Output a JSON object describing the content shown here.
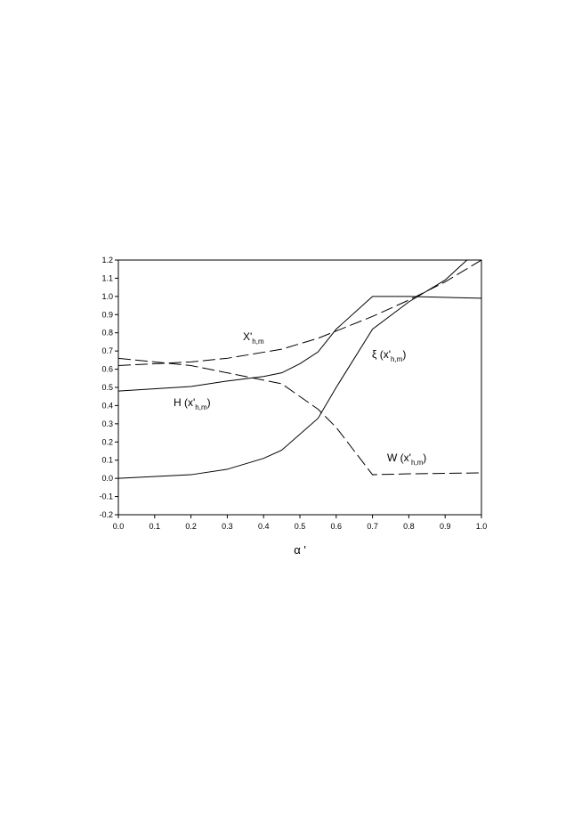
{
  "chart_data": {
    "type": "line",
    "x_label": "α '",
    "xlim": [
      0,
      1
    ],
    "ylim": [
      -0.2,
      1.2
    ],
    "xticks": [
      {
        "value": 0,
        "label": "0.0"
      },
      0.1,
      0.2,
      0.3,
      0.4,
      0.5,
      0.6,
      0.7,
      0.8,
      0.9,
      {
        "value": 1,
        "label": "1.0"
      }
    ],
    "yticks": [
      -0.2,
      -0.1,
      {
        "value": 0,
        "label": "0.0"
      },
      0.1,
      0.2,
      0.3,
      0.4,
      0.5,
      0.6,
      0.7,
      0.8,
      0.9,
      {
        "value": 1,
        "label": "1.0"
      },
      1.1,
      1.2
    ],
    "series": [
      {
        "color": "#000000",
        "style": "solid",
        "x": [
          0,
          0.2,
          0.3,
          0.4,
          0.45,
          0.5,
          0.55,
          0.6,
          0.7,
          0.8,
          1.0
        ],
        "values": [
          0.48,
          0.505,
          0.535,
          0.56,
          0.58,
          0.63,
          0.695,
          0.82,
          1.0,
          1.0,
          0.99
        ]
      },
      {
        "color": "#000000",
        "style": "solid",
        "x": [
          0,
          0.2,
          0.3,
          0.4,
          0.45,
          0.55,
          0.6,
          0.7,
          0.8,
          0.9,
          0.96
        ],
        "values": [
          0,
          0.02,
          0.05,
          0.11,
          0.155,
          0.33,
          0.5,
          0.82,
          0.97,
          1.09,
          1.2
        ]
      },
      {
        "color": "#000000",
        "style": "dashed",
        "x": [
          0,
          0.2,
          0.3,
          0.45,
          0.55,
          0.6,
          0.7,
          0.8,
          0.9,
          1.0
        ],
        "values": [
          0.62,
          0.64,
          0.66,
          0.71,
          0.77,
          0.81,
          0.89,
          0.98,
          1.08,
          1.2
        ]
      },
      {
        "color": "#000000",
        "style": "dashed",
        "x": [
          0,
          0.2,
          0.3,
          0.45,
          0.55,
          0.6,
          0.7,
          0.8,
          1.0
        ],
        "values": [
          0.66,
          0.62,
          0.58,
          0.52,
          0.38,
          0.28,
          0.02,
          0.025,
          0.03
        ]
      }
    ],
    "annotations": [
      {
        "prefix": "H (x'",
        "subscript": "h,m",
        "suffix": ")"
      },
      {
        "prefix": "ξ (x'",
        "subscript": "h,m",
        "suffix": ")"
      },
      {
        "prefix": "X'",
        "subscript": "h,m",
        "suffix": ""
      },
      {
        "prefix": "W (x'",
        "subscript": "h,m",
        "suffix": ")"
      }
    ]
  }
}
